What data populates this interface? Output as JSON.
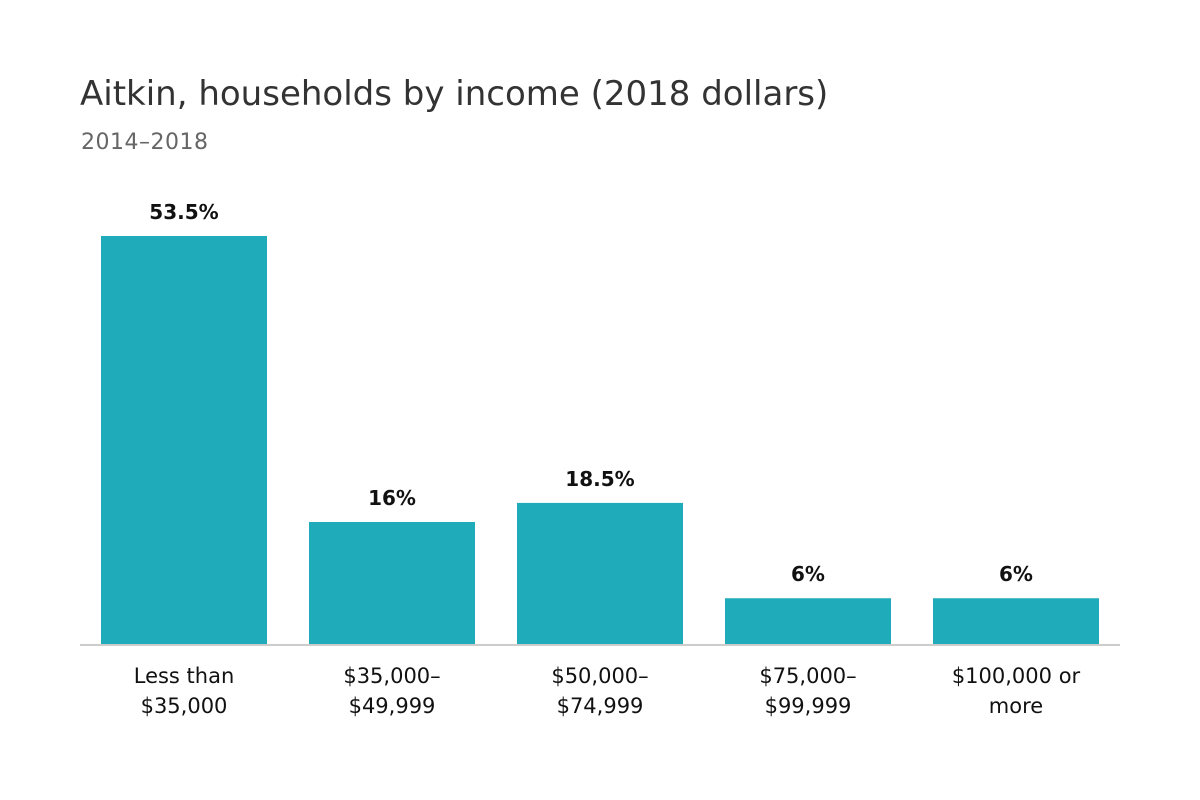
{
  "chart_data": {
    "type": "bar",
    "title": "Aitkin, households by income (2018 dollars)",
    "subtitle": "2014–2018",
    "categories": [
      [
        "Less than",
        "$35,000"
      ],
      [
        "$35,000–",
        "$49,999"
      ],
      [
        "$50,000–",
        "$74,999"
      ],
      [
        "$75,000–",
        "$99,999"
      ],
      [
        "$100,000 or",
        "more"
      ]
    ],
    "values": [
      53.5,
      16,
      18.5,
      6,
      6
    ],
    "data_labels": [
      "53.5%",
      "16%",
      "18.5%",
      "6%",
      "6%"
    ],
    "bar_color": "#20abbb",
    "axis_color": "#cccccc",
    "ylim": [
      0,
      53.5
    ],
    "grid": false,
    "legend": "none"
  }
}
